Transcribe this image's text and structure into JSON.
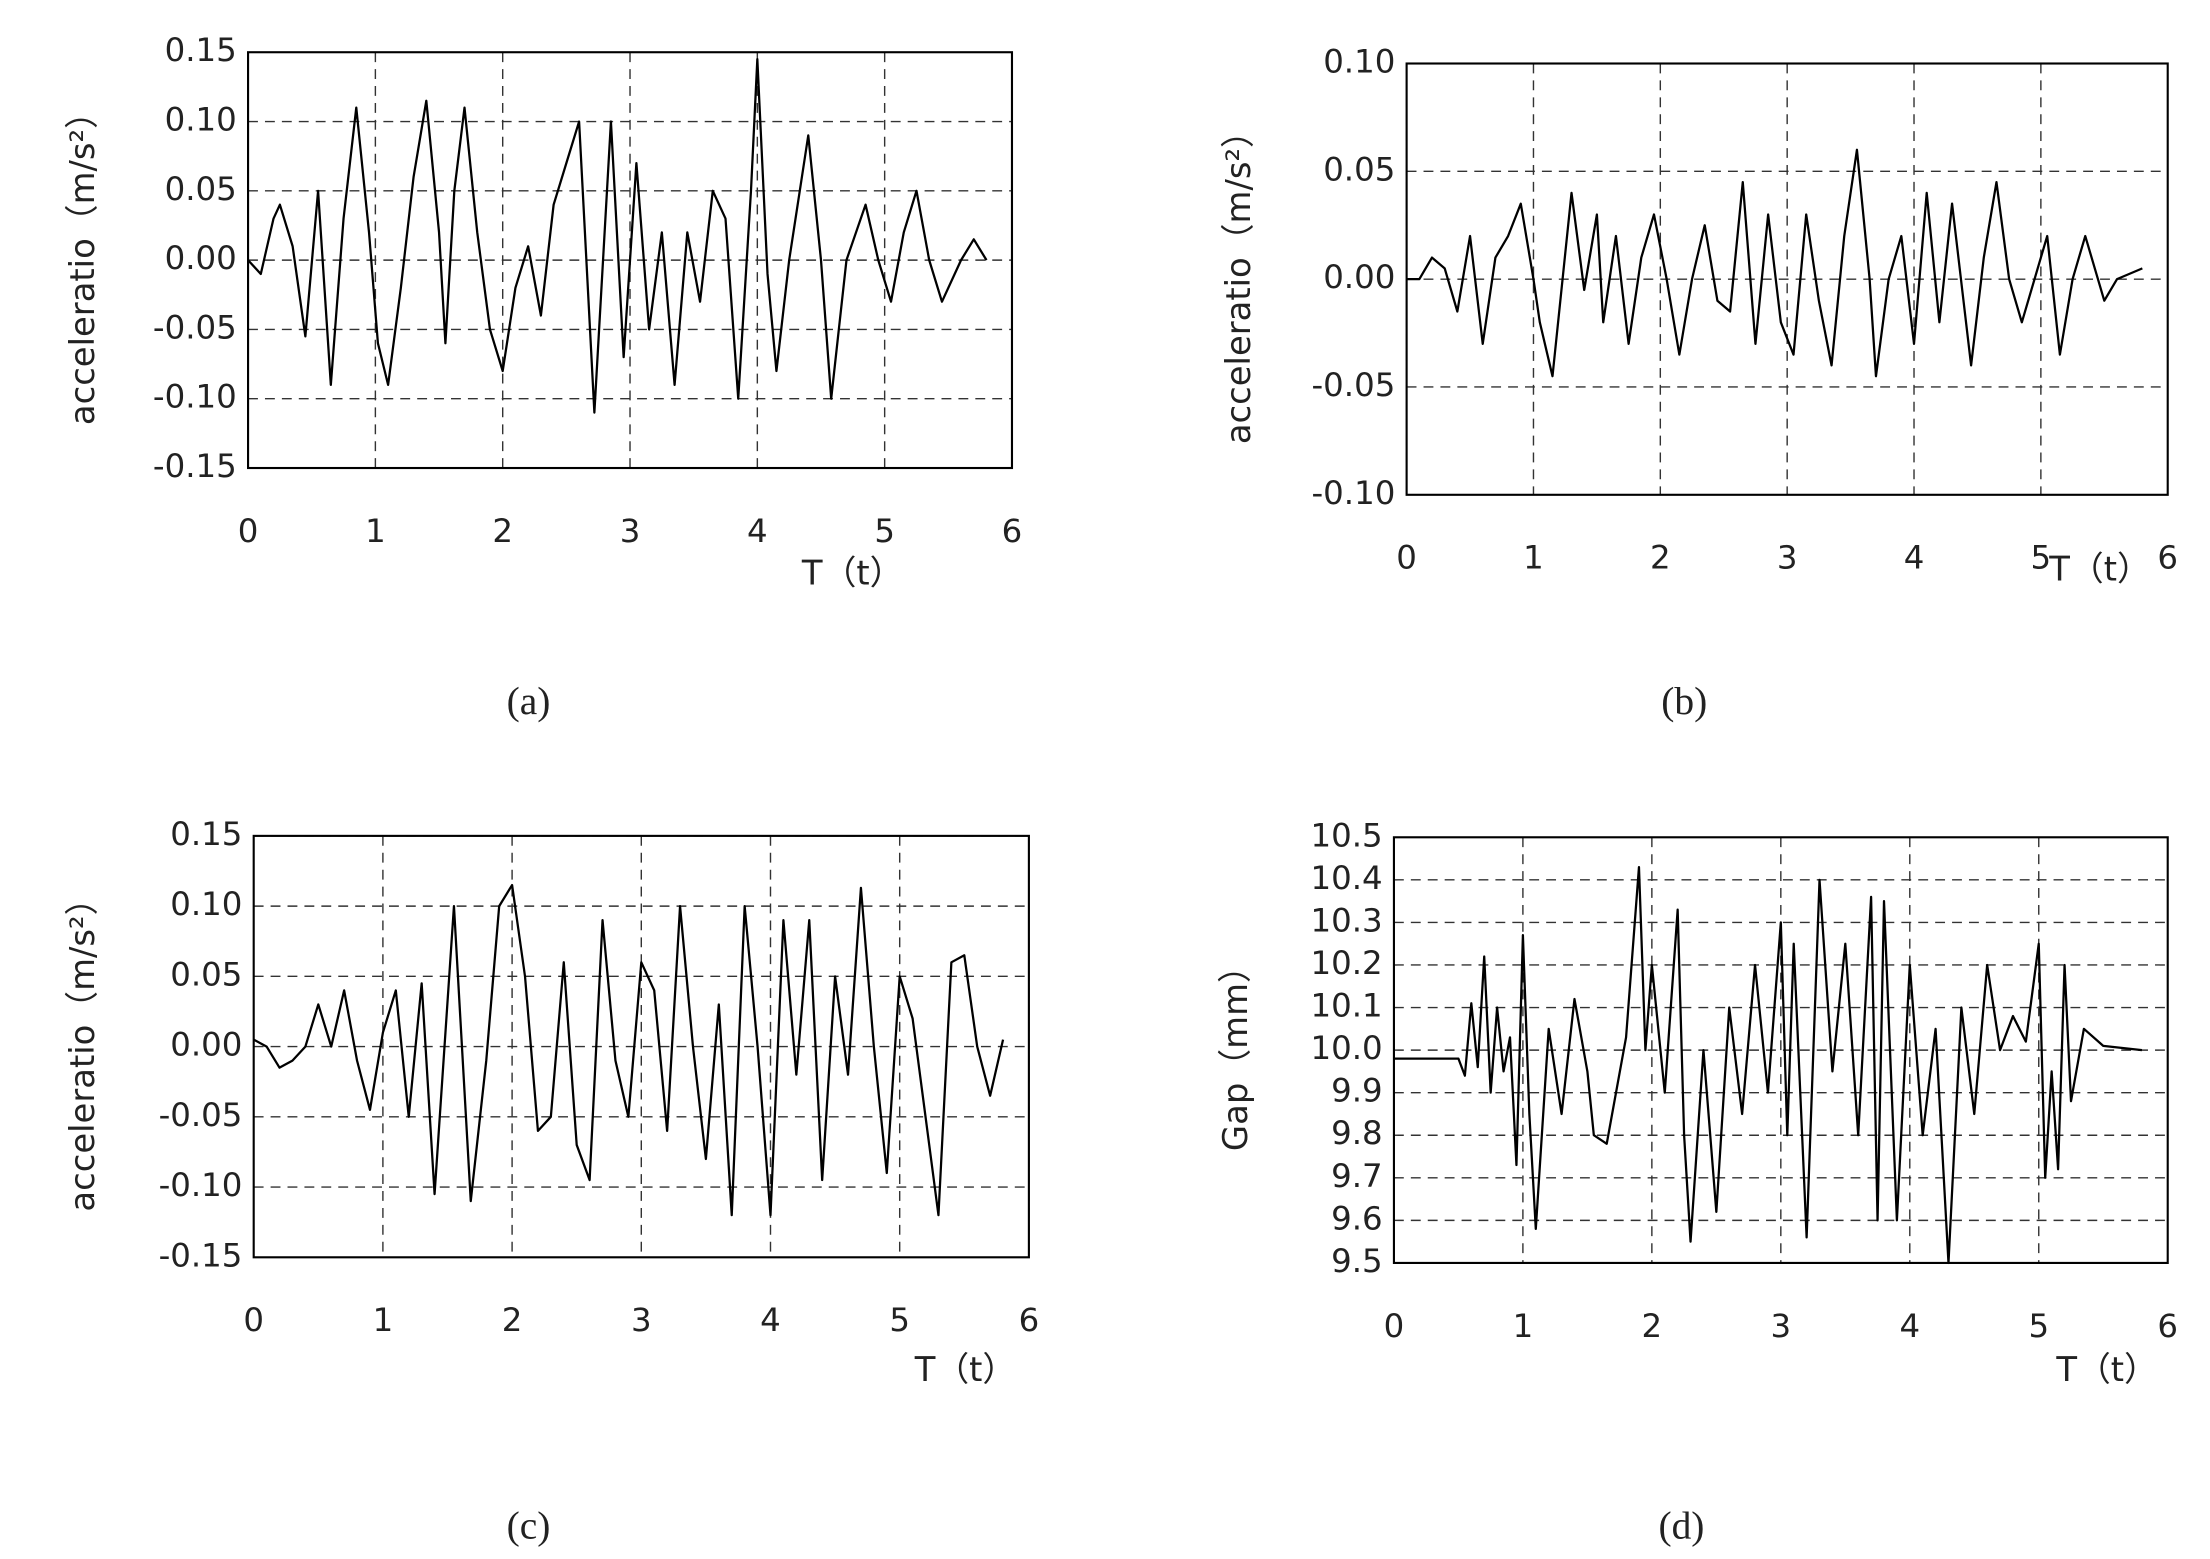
{
  "chart_data": [
    {
      "type": "line",
      "caption": "(a)",
      "y_label": "acceleratio（m/s²）",
      "x_label": "T（t）",
      "color": "#000000",
      "grid": true,
      "xlim": [
        0,
        6
      ],
      "ylim": [
        -0.15,
        0.15
      ],
      "xticks": [
        0,
        1,
        2,
        3,
        4,
        5,
        6
      ],
      "yticks": [
        -0.15,
        {
          "value": -0.1,
          "label": "-0.10"
        },
        -0.05,
        {
          "value": 0,
          "label": "0.00"
        },
        0.05,
        {
          "value": 0.1,
          "label": "0.10"
        },
        0.15
      ],
      "x": [
        0,
        0.1,
        0.2,
        0.25,
        0.35,
        0.45,
        0.55,
        0.65,
        0.75,
        0.85,
        0.95,
        1.02,
        1.1,
        1.2,
        1.3,
        1.4,
        1.5,
        1.55,
        1.62,
        1.7,
        1.8,
        1.9,
        2.0,
        2.1,
        2.2,
        2.3,
        2.4,
        2.5,
        2.6,
        2.72,
        2.85,
        2.95,
        3.05,
        3.15,
        3.25,
        3.35,
        3.45,
        3.55,
        3.65,
        3.75,
        3.85,
        3.95,
        4.0,
        4.08,
        4.15,
        4.25,
        4.4,
        4.5,
        4.58,
        4.7,
        4.85,
        4.95,
        5.05,
        5.15,
        5.25,
        5.35,
        5.45,
        5.6,
        5.7,
        5.8
      ],
      "values": [
        0,
        -0.01,
        0.03,
        0.04,
        0.01,
        -0.055,
        0.05,
        -0.09,
        0.03,
        0.11,
        0.02,
        -0.06,
        -0.09,
        -0.02,
        0.06,
        0.115,
        0.02,
        -0.06,
        0.05,
        0.11,
        0.02,
        -0.05,
        -0.08,
        -0.02,
        0.01,
        -0.04,
        0.04,
        0.07,
        0.1,
        -0.11,
        0.1,
        -0.07,
        0.07,
        -0.05,
        0.02,
        -0.09,
        0.02,
        -0.03,
        0.05,
        0.03,
        -0.1,
        0.05,
        0.145,
        -0.01,
        -0.08,
        0,
        0.09,
        0,
        -0.1,
        0,
        0.04,
        0,
        -0.03,
        0.02,
        0.05,
        0,
        -0.03,
        0,
        0.015,
        0
      ]
    },
    {
      "type": "line",
      "caption": "(b)",
      "y_label": "acceleratio（m/s²）",
      "x_label": "T（t）",
      "color": "#000000",
      "grid": true,
      "xlim": [
        0,
        6
      ],
      "ylim": [
        -0.1,
        0.1
      ],
      "xticks": [
        0,
        1,
        2,
        3,
        4,
        5,
        6
      ],
      "yticks": [
        {
          "value": -0.1,
          "label": "-0.10"
        },
        -0.05,
        {
          "value": 0,
          "label": "0.00"
        },
        0.05,
        {
          "value": 0.1,
          "label": "0.10"
        }
      ],
      "x": [
        0,
        0.1,
        0.2,
        0.3,
        0.4,
        0.5,
        0.6,
        0.7,
        0.8,
        0.9,
        1.0,
        1.05,
        1.15,
        1.3,
        1.4,
        1.5,
        1.55,
        1.65,
        1.75,
        1.85,
        1.95,
        2.05,
        2.15,
        2.25,
        2.35,
        2.45,
        2.55,
        2.65,
        2.75,
        2.85,
        2.95,
        3.05,
        3.15,
        3.25,
        3.35,
        3.45,
        3.55,
        3.65,
        3.7,
        3.8,
        3.9,
        4.0,
        4.1,
        4.2,
        4.3,
        4.45,
        4.55,
        4.65,
        4.75,
        4.85,
        4.95,
        5.05,
        5.15,
        5.25,
        5.35,
        5.5,
        5.6,
        5.8
      ],
      "values": [
        0,
        0,
        0.01,
        0.005,
        -0.015,
        0.02,
        -0.03,
        0.01,
        0.02,
        0.035,
        0,
        -0.02,
        -0.045,
        0.04,
        -0.005,
        0.03,
        -0.02,
        0.02,
        -0.03,
        0.01,
        0.03,
        0,
        -0.035,
        0,
        0.025,
        -0.01,
        -0.015,
        0.045,
        -0.03,
        0.03,
        -0.02,
        -0.035,
        0.03,
        -0.01,
        -0.04,
        0.02,
        0.06,
        0,
        -0.045,
        0,
        0.02,
        -0.03,
        0.04,
        -0.02,
        0.035,
        -0.04,
        0.01,
        0.045,
        0,
        -0.02,
        0,
        0.02,
        -0.035,
        0,
        0.02,
        -0.01,
        0,
        0.005
      ]
    },
    {
      "type": "line",
      "caption": "(c)",
      "y_label": "acceleratio（m/s²）",
      "x_label": "T（t）",
      "color": "#000000",
      "grid": true,
      "xlim": [
        0,
        6
      ],
      "ylim": [
        -0.15,
        0.15
      ],
      "xticks": [
        0,
        1,
        2,
        3,
        4,
        5,
        6
      ],
      "yticks": [
        -0.15,
        {
          "value": -0.1,
          "label": "-0.10"
        },
        -0.05,
        {
          "value": 0,
          "label": "0.00"
        },
        0.05,
        {
          "value": 0.1,
          "label": "0.10"
        },
        0.15
      ],
      "x": [
        0,
        0.1,
        0.2,
        0.3,
        0.4,
        0.5,
        0.6,
        0.7,
        0.8,
        0.9,
        1.0,
        1.1,
        1.2,
        1.3,
        1.4,
        1.55,
        1.68,
        1.8,
        1.9,
        2.0,
        2.1,
        2.2,
        2.3,
        2.4,
        2.5,
        2.6,
        2.7,
        2.8,
        2.9,
        3.0,
        3.1,
        3.2,
        3.3,
        3.4,
        3.5,
        3.6,
        3.7,
        3.8,
        3.9,
        4.0,
        4.1,
        4.2,
        4.3,
        4.4,
        4.5,
        4.6,
        4.7,
        4.8,
        4.9,
        5.0,
        5.1,
        5.2,
        5.3,
        5.4,
        5.5,
        5.6,
        5.7,
        5.8
      ],
      "values": [
        0.005,
        0,
        -0.015,
        -0.01,
        0,
        0.03,
        0,
        0.04,
        -0.01,
        -0.045,
        0.01,
        0.04,
        -0.05,
        0.045,
        -0.105,
        0.1,
        -0.11,
        -0.01,
        0.1,
        0.115,
        0.05,
        -0.06,
        -0.05,
        0.06,
        -0.07,
        -0.095,
        0.09,
        -0.01,
        -0.05,
        0.06,
        0.04,
        -0.06,
        0.1,
        0,
        -0.08,
        0.03,
        -0.12,
        0.1,
        0,
        -0.12,
        0.09,
        -0.02,
        0.09,
        -0.095,
        0.05,
        -0.02,
        0.113,
        0,
        -0.09,
        0.05,
        0.02,
        -0.05,
        -0.12,
        0.06,
        0.065,
        0,
        -0.035,
        0.005
      ]
    },
    {
      "type": "line",
      "caption": "(d)",
      "y_label": "Gap（mm）",
      "x_label": "T（t）",
      "color": "#000000",
      "grid": true,
      "xlim": [
        0,
        6
      ],
      "ylim": [
        9.5,
        10.5
      ],
      "xticks": [
        0,
        1,
        2,
        3,
        4,
        5,
        6
      ],
      "yticks": [
        9.5,
        9.6,
        9.7,
        9.8,
        9.9,
        {
          "value": 10,
          "label": "10.0"
        },
        10.1,
        10.2,
        10.3,
        10.4,
        10.5
      ],
      "x": [
        0,
        0.5,
        0.55,
        0.6,
        0.65,
        0.7,
        0.75,
        0.8,
        0.85,
        0.9,
        0.95,
        1.0,
        1.05,
        1.1,
        1.2,
        1.3,
        1.4,
        1.5,
        1.55,
        1.65,
        1.8,
        1.9,
        1.95,
        2.0,
        2.1,
        2.2,
        2.25,
        2.3,
        2.4,
        2.5,
        2.6,
        2.7,
        2.8,
        2.9,
        3.0,
        3.05,
        3.1,
        3.2,
        3.3,
        3.4,
        3.5,
        3.6,
        3.7,
        3.75,
        3.8,
        3.9,
        4.0,
        4.1,
        4.2,
        4.3,
        4.4,
        4.5,
        4.6,
        4.7,
        4.8,
        4.9,
        5.0,
        5.05,
        5.1,
        5.15,
        5.2,
        5.25,
        5.35,
        5.5,
        5.8
      ],
      "values": [
        9.98,
        9.98,
        9.94,
        10.11,
        9.96,
        10.22,
        9.9,
        10.1,
        9.95,
        10.03,
        9.73,
        10.27,
        9.85,
        9.58,
        10.05,
        9.85,
        10.12,
        9.95,
        9.8,
        9.78,
        10.03,
        10.43,
        10,
        10.2,
        9.9,
        10.33,
        9.8,
        9.55,
        10,
        9.62,
        10.1,
        9.85,
        10.2,
        9.9,
        10.3,
        9.8,
        10.25,
        9.56,
        10.4,
        9.95,
        10.25,
        9.8,
        10.36,
        9.6,
        10.35,
        9.6,
        10.2,
        9.8,
        10.05,
        9.5,
        10.1,
        9.85,
        10.2,
        10,
        10.08,
        10.02,
        10.25,
        9.7,
        9.95,
        9.72,
        10.2,
        9.88,
        10.05,
        10.01,
        10
      ]
    }
  ]
}
